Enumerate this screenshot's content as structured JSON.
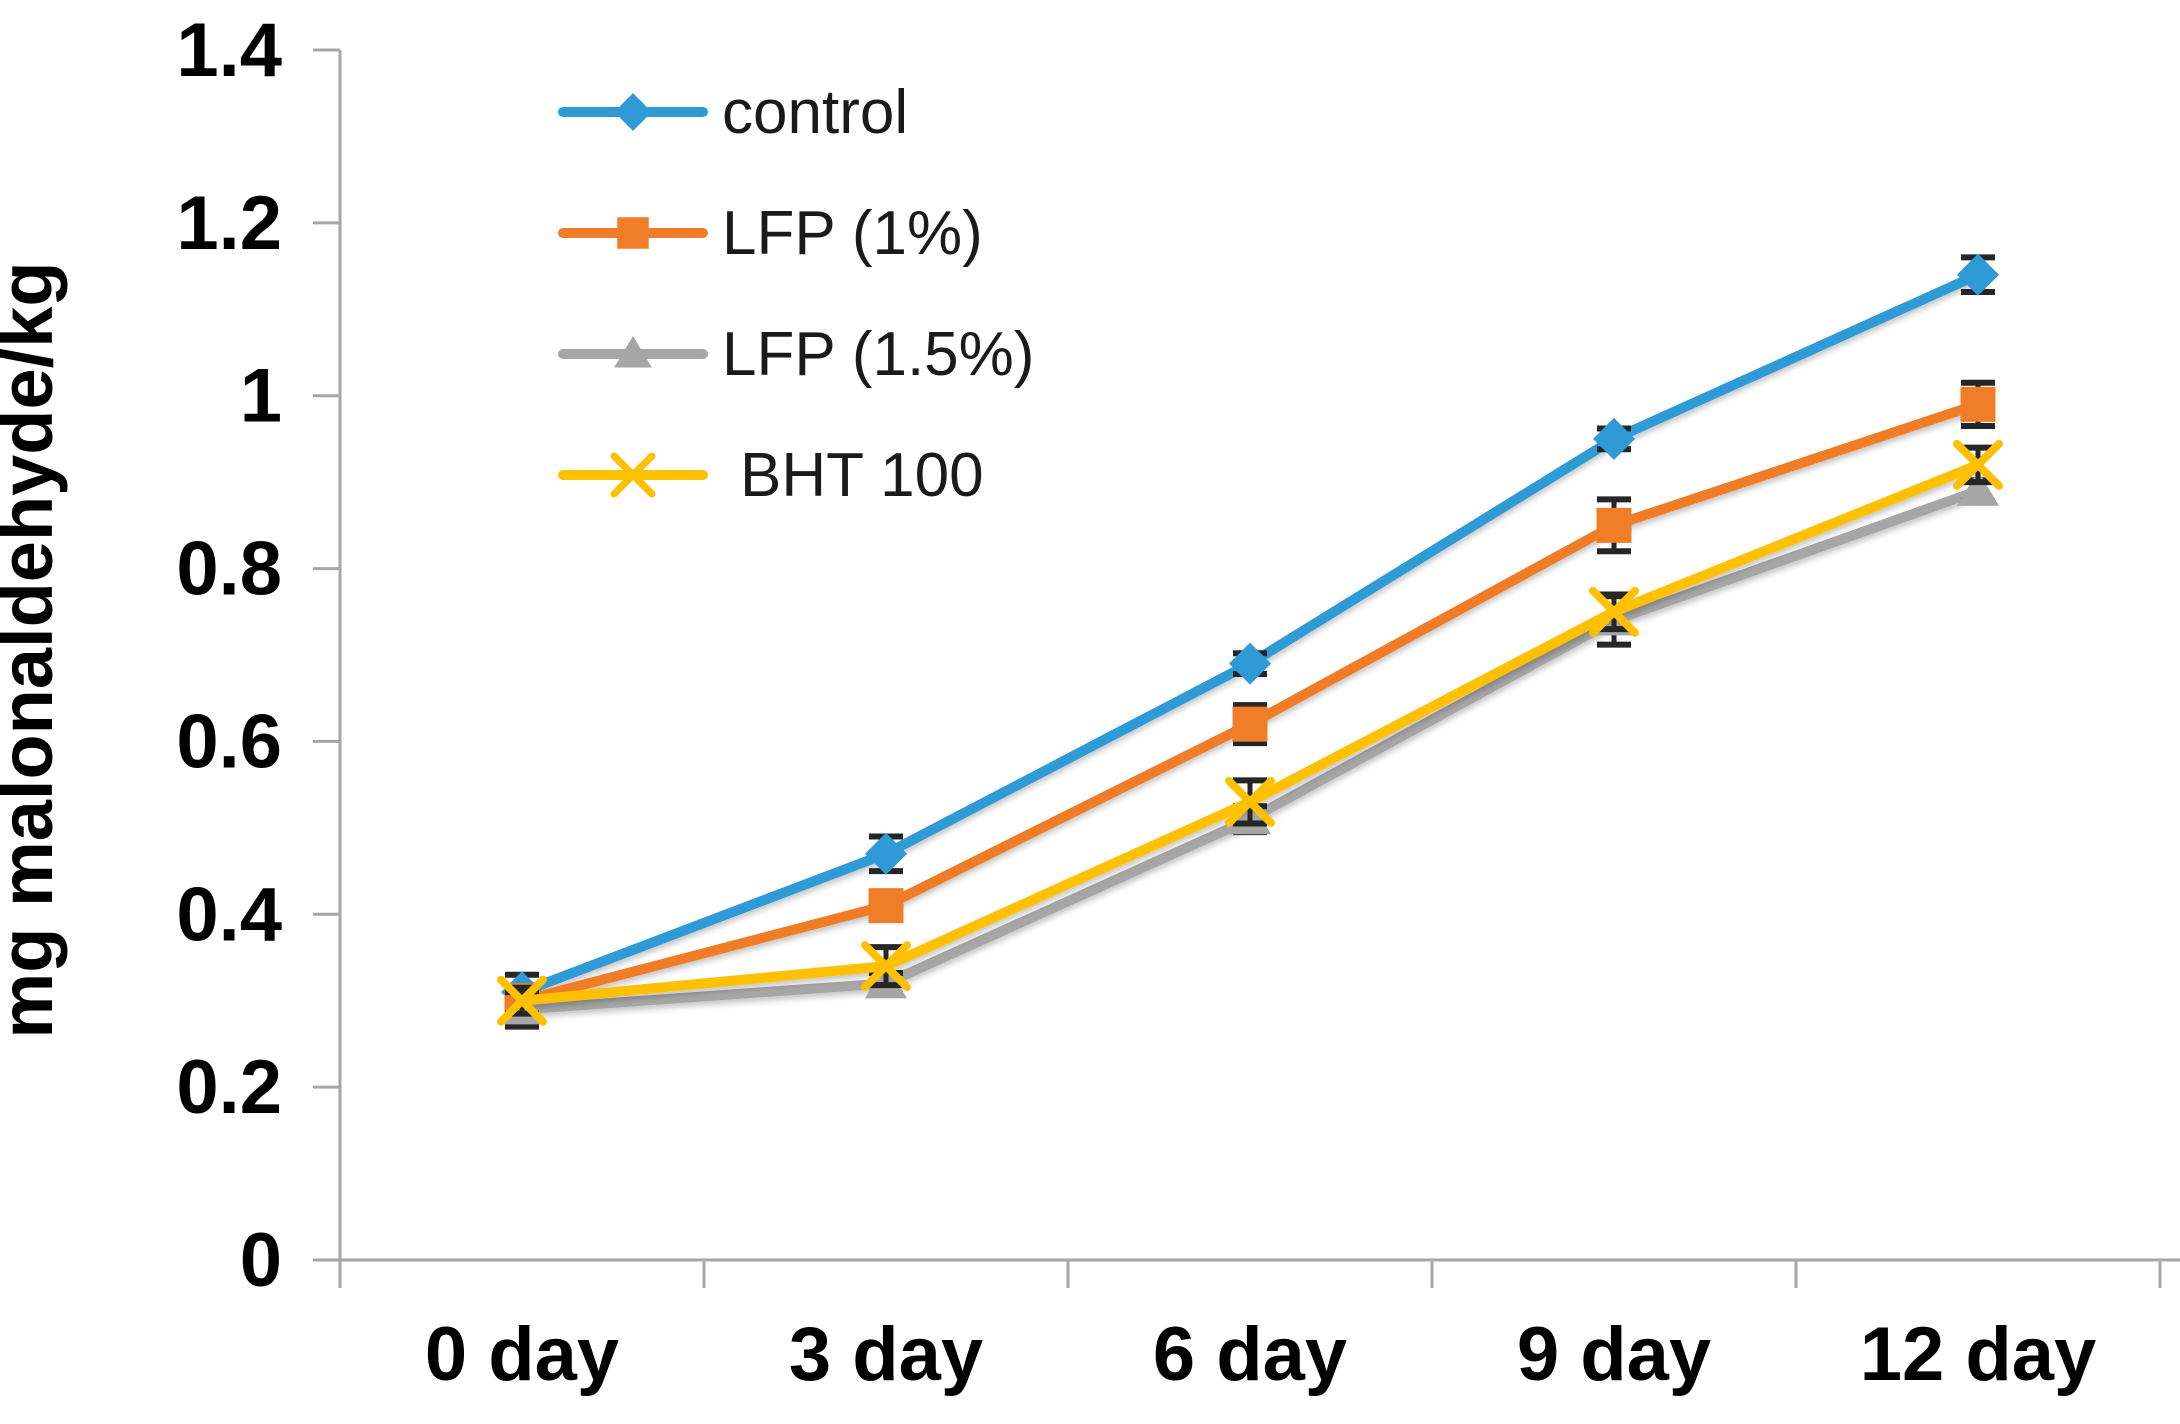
{
  "chart_data": {
    "type": "line",
    "title": "",
    "xlabel": "",
    "ylabel": "mg malonaldehyde/kg",
    "categories": [
      "0 day",
      "3 day",
      "6 day",
      "9 day",
      "12 day"
    ],
    "ylim": [
      0,
      1.4
    ],
    "ytick_step": 0.2,
    "ytick_labels": [
      "0",
      "0.2",
      "0.4",
      "0.6",
      "0.8",
      "1",
      "1.2",
      "1.4"
    ],
    "grid": false,
    "legend_position": "inside-top-left",
    "error_bars": true,
    "series": [
      {
        "name": "control",
        "marker": "diamond",
        "color": "#2E9AD6",
        "values": [
          0.31,
          0.47,
          0.69,
          0.95,
          1.14
        ],
        "errors": [
          0.02,
          0.02,
          0.012,
          0.012,
          0.02
        ]
      },
      {
        "name": "LFP (1%)",
        "marker": "square",
        "color": "#F07D28",
        "values": [
          0.3,
          0.41,
          0.62,
          0.85,
          0.99
        ],
        "errors": [
          0.015,
          0.01,
          0.022,
          0.03,
          0.025
        ]
      },
      {
        "name": "LFP (1.5%)",
        "marker": "triangle",
        "color": "#A6A6A6",
        "values": [
          0.29,
          0.32,
          0.51,
          0.74,
          0.89
        ],
        "errors": [
          0.02,
          0.012,
          0.015,
          0.028,
          0.012
        ]
      },
      {
        "name": "BHT 100",
        "marker": "x",
        "color": "#FFC000",
        "values": [
          0.3,
          0.34,
          0.53,
          0.75,
          0.92
        ],
        "errors": [
          0.015,
          0.022,
          0.025,
          0.02,
          0.02
        ]
      }
    ],
    "colors": {
      "axis": "#A6A6A6",
      "error_bar": "#262626",
      "text": "#000000",
      "legend_text": "#1A1A1A",
      "background": "#FFFFFF"
    }
  }
}
